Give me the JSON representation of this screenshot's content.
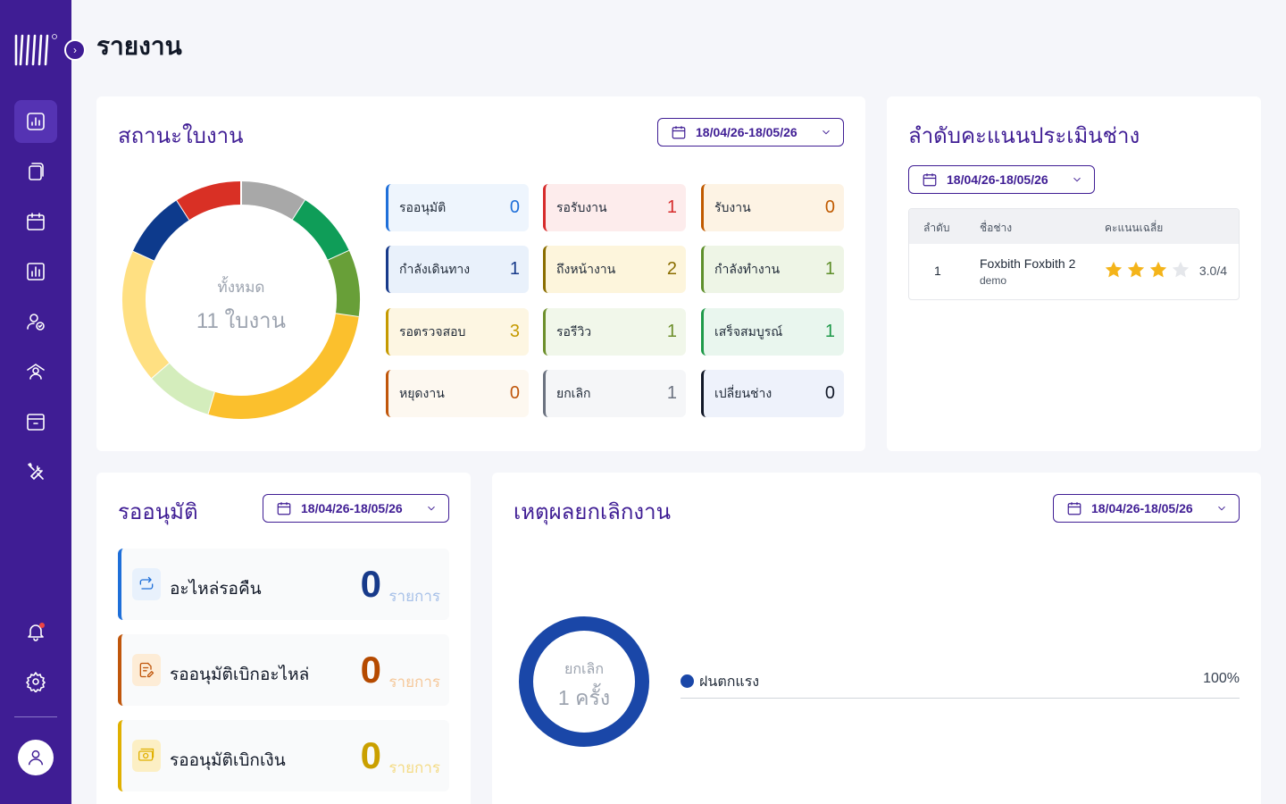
{
  "page": {
    "title": "รายงาน"
  },
  "sidebar": {
    "items": [
      {
        "name": "report-icon",
        "active": true
      },
      {
        "name": "documents-icon"
      },
      {
        "name": "calendar-icon"
      },
      {
        "name": "chart-icon"
      },
      {
        "name": "user-check-icon"
      },
      {
        "name": "team-icon"
      },
      {
        "name": "archive-icon"
      },
      {
        "name": "tools-icon"
      }
    ],
    "bottom": [
      {
        "name": "bell-icon"
      },
      {
        "name": "gear-icon"
      }
    ]
  },
  "status_card": {
    "title": "สถานะใบงาน",
    "date_range": "18/04/26-18/05/26",
    "total_label": "ทั้งหมด",
    "total_value": "11 ใบงาน",
    "tiles": [
      {
        "label": "รออนุมัติ",
        "value": "0",
        "color": "#1e6fd9",
        "bg": "#eef5fd"
      },
      {
        "label": "รอรับงาน",
        "value": "1",
        "color": "#d62b2b",
        "bg": "#fdecec"
      },
      {
        "label": "รับงาน",
        "value": "0",
        "color": "#c05a00",
        "bg": "#fdf3e4"
      },
      {
        "label": "กำลังเดินทาง",
        "value": "1",
        "color": "#173a8a",
        "bg": "#e9f1fb"
      },
      {
        "label": "ถึงหน้างาน",
        "value": "2",
        "color": "#8a6d00",
        "bg": "#fdf5dc"
      },
      {
        "label": "กำลังทำงาน",
        "value": "1",
        "color": "#5e8f2b",
        "bg": "#eef5e6"
      },
      {
        "label": "รอตรวจสอบ",
        "value": "3",
        "color": "#c59a00",
        "bg": "#fdf6e2"
      },
      {
        "label": "รอรีวิว",
        "value": "1",
        "color": "#6d8f2b",
        "bg": "#f1f7ea"
      },
      {
        "label": "เสร็จสมบูรณ์",
        "value": "1",
        "color": "#1f9a4a",
        "bg": "#e9f6ee"
      },
      {
        "label": "หยุดงาน",
        "value": "0",
        "color": "#c0560b",
        "bg": "#fdf8f0"
      },
      {
        "label": "ยกเลิก",
        "value": "1",
        "color": "#6b7280",
        "bg": "#f5f6f8"
      },
      {
        "label": "เปลี่ยนช่าง",
        "value": "0",
        "color": "#111827",
        "bg": "#eef2fb"
      }
    ],
    "donut": [
      {
        "value": 1,
        "color": "#a8a8a8"
      },
      {
        "value": 1,
        "color": "#0f9d58"
      },
      {
        "value": 1,
        "color": "#689f38"
      },
      {
        "value": 3,
        "color": "#fbc02d"
      },
      {
        "value": 1,
        "color": "#d4edbc"
      },
      {
        "value": 2,
        "color": "#ffe082"
      },
      {
        "value": 1,
        "color": "#0d3a8c"
      },
      {
        "value": 1,
        "color": "#d93025"
      }
    ]
  },
  "rank_card": {
    "title": "ลำดับคะแนนประเมินช่าง",
    "date_range": "18/04/26-18/05/26",
    "headers": {
      "rank": "ลำดับ",
      "name": "ชื่อช่าง",
      "score": "คะแนนเฉลี่ย"
    },
    "rows": [
      {
        "rank": "1",
        "name": "Foxbith Foxbith 2",
        "sub": "demo",
        "score": "3.0/4",
        "stars": 3,
        "max_stars": 4
      }
    ]
  },
  "pending_card": {
    "title": "รออนุมัติ",
    "date_range": "18/04/26-18/05/26",
    "items": [
      {
        "label": "อะไหล่รอคืน",
        "value": "0",
        "unit": "รายการ",
        "icon": "return-icon",
        "color": "#1e6fd9",
        "icon_bg": "#e8f1fc",
        "num_color": "#173a8a",
        "unit_color": "#a8c1e8"
      },
      {
        "label": "รออนุมัติเบิกอะไหล่",
        "value": "0",
        "unit": "รายการ",
        "icon": "document-edit-icon",
        "color": "#c0560b",
        "icon_bg": "#fdecd6",
        "num_color": "#b54a00",
        "unit_color": "#f5c89a"
      },
      {
        "label": "รออนุมัติเบิกเงิน",
        "value": "0",
        "unit": "รายการ",
        "icon": "money-icon",
        "color": "#e0b000",
        "icon_bg": "#fcefc4",
        "num_color": "#caa000",
        "unit_color": "#f4db85"
      }
    ]
  },
  "cancel_card": {
    "title": "เหตุผลยกเลิกงาน",
    "date_range": "18/04/26-18/05/26",
    "center_label": "ยกเลิก",
    "center_value": "1 ครั้ง",
    "legend": [
      {
        "label": "ฝนตกแรง",
        "percent": "100%",
        "color": "#1a47a8"
      }
    ]
  }
}
